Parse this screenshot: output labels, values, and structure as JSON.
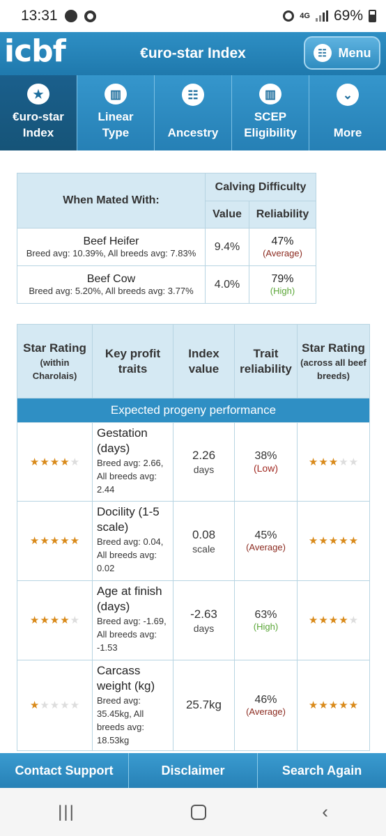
{
  "status": {
    "time": "13:31",
    "network": "4G",
    "battery": "69%"
  },
  "app": {
    "logo": "icbf",
    "title": "€uro-star Index",
    "menu_label": "Menu"
  },
  "tabs": [
    {
      "label": "€uro-star Index",
      "icon": "star-icon",
      "active": true
    },
    {
      "label": "Linear Type",
      "icon": "bar-chart-icon"
    },
    {
      "label": "Ancestry",
      "icon": "sitemap-icon"
    },
    {
      "label": "SCEP Eligibility",
      "icon": "bar-chart-icon"
    },
    {
      "label": "More",
      "icon": "chevron-down-icon"
    }
  ],
  "calving": {
    "header_mated": "When Mated With:",
    "header_group": "Calving Difficulty",
    "header_value": "Value",
    "header_reliability": "Reliability",
    "rows": [
      {
        "name": "Beef Heifer",
        "avg": "Breed avg: 10.39%, All breeds avg: 7.83%",
        "value": "9.4%",
        "rel": "47%",
        "rel_label": "(Average)"
      },
      {
        "name": "Beef Cow",
        "avg": "Breed avg: 5.20%, All breeds avg: 3.77%",
        "value": "4.0%",
        "rel": "79%",
        "rel_label": "(High)"
      }
    ]
  },
  "stars_table": {
    "h1": "Star Rating",
    "h1_sub": "(within Charolais)",
    "h2": "Key profit traits",
    "h3": "Index value",
    "h4": "Trait reliability",
    "h5": "Star Rating",
    "h5_sub": "(across all beef breeds)",
    "band": "Expected progeny performance",
    "rows": [
      {
        "trait": "Gestation (days)",
        "avg": "Breed avg: 2.66, All breeds avg: 2.44",
        "value": "2.26",
        "unit": "days",
        "rel": "38%",
        "rel_label": "(Low)",
        "within": 4,
        "across": 3
      },
      {
        "trait": "Docility (1-5 scale)",
        "avg": "Breed avg: 0.04, All breeds avg: 0.02",
        "value": "0.08",
        "unit": "scale",
        "rel": "45%",
        "rel_label": "(Average)",
        "within": 5,
        "across": 5
      },
      {
        "trait": "Age at finish (days)",
        "avg": "Breed avg: -1.69, All breeds avg: -1.53",
        "value": "-2.63",
        "unit": "days",
        "rel": "63%",
        "rel_label": "(High)",
        "within": 4,
        "across": 4
      },
      {
        "trait": "Carcass weight (kg)",
        "avg": "Breed avg: 35.45kg, All breeds avg: 18.53kg",
        "value": "25.7kg",
        "unit": "",
        "rel": "46%",
        "rel_label": "(Average)",
        "within": 1,
        "across": 5
      }
    ]
  },
  "footer": {
    "contact": "Contact Support",
    "disclaimer": "Disclaimer",
    "search": "Search Again"
  }
}
